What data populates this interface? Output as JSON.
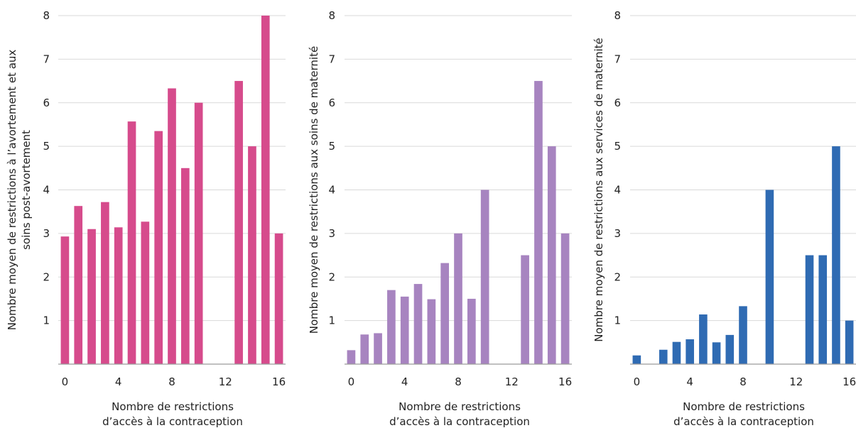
{
  "chart_data": [
    {
      "type": "bar",
      "x": [
        0,
        1,
        2,
        3,
        4,
        5,
        6,
        7,
        8,
        9,
        10,
        11,
        12,
        13,
        14,
        15,
        16
      ],
      "values": [
        2.93,
        3.63,
        3.1,
        3.72,
        3.14,
        5.57,
        3.27,
        5.35,
        6.33,
        4.5,
        6.0,
        0,
        0,
        6.5,
        5.0,
        8.0,
        3.0
      ],
      "xticks": [
        "0",
        "4",
        "8",
        "12",
        "16"
      ],
      "yticks": [
        "1",
        "2",
        "3",
        "4",
        "5",
        "6",
        "7",
        "8"
      ],
      "ylim": [
        0,
        8
      ],
      "xlabel": [
        "Nombre de restrictions",
        "d’accès à la contraception"
      ],
      "ylabel": [
        "Nombre moyen de restrictions à l’avortement et aux",
        "soins post-avortement"
      ],
      "color": "#d64b8c",
      "grid": "horizontal"
    },
    {
      "type": "bar",
      "x": [
        0,
        1,
        2,
        3,
        4,
        5,
        6,
        7,
        8,
        9,
        10,
        11,
        12,
        13,
        14,
        15,
        16
      ],
      "values": [
        0.32,
        0.68,
        0.71,
        1.7,
        1.55,
        1.84,
        1.49,
        2.32,
        3.0,
        1.5,
        4.0,
        0,
        0,
        2.5,
        6.5,
        5.0,
        3.0
      ],
      "xticks": [
        "0",
        "4",
        "8",
        "12",
        "16"
      ],
      "yticks": [
        "1",
        "2",
        "3",
        "4",
        "5",
        "6",
        "7",
        "8"
      ],
      "ylim": [
        0,
        8
      ],
      "xlabel": [
        "Nombre de restrictions",
        "d’accès à la contraception"
      ],
      "ylabel": [
        "Nombre moyen de restrictions aux soins de maternité"
      ],
      "color": "#a784c0",
      "grid": "horizontal"
    },
    {
      "type": "bar",
      "x": [
        0,
        1,
        2,
        3,
        4,
        5,
        6,
        7,
        8,
        9,
        10,
        11,
        12,
        13,
        14,
        15,
        16
      ],
      "values": [
        0.2,
        0,
        0.33,
        0.51,
        0.57,
        1.14,
        0.5,
        0.67,
        1.33,
        0,
        4.0,
        0,
        0,
        2.5,
        2.5,
        5.0,
        1.0
      ],
      "xticks": [
        "0",
        "4",
        "8",
        "12",
        "16"
      ],
      "yticks": [
        "1",
        "2",
        "3",
        "4",
        "5",
        "6",
        "7",
        "8"
      ],
      "ylim": [
        0,
        8
      ],
      "xlabel": [
        "Nombre de restrictions",
        "d’accès à la contraception"
      ],
      "ylabel": [
        "Nombre moyen de restrictions aux services de maternité"
      ],
      "color": "#2f6bb3",
      "grid": "horizontal"
    }
  ]
}
